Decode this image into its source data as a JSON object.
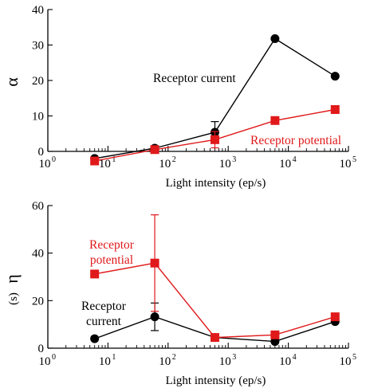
{
  "chart_data": [
    {
      "type": "line",
      "ylabel": "α",
      "xlabel": "Light intensity (ep/s)",
      "xscale": "log",
      "xlim": [
        1,
        100000
      ],
      "ylim": [
        0,
        40
      ],
      "yticks": [
        0,
        10,
        20,
        30,
        40
      ],
      "xtick_base": "10",
      "xtick_exponents": [
        "0",
        "1",
        "2",
        "3",
        "4",
        "5"
      ],
      "grid": false,
      "series": [
        {
          "name": "Receptor current",
          "color": "#000000",
          "marker": "circle",
          "x": [
            6,
            60,
            600,
            6000,
            60000
          ],
          "y": [
            -2.0,
            0.9,
            5.4,
            31.8,
            21.2
          ],
          "err": [
            null,
            null,
            3.0,
            null,
            null
          ]
        },
        {
          "name": "Receptor potential",
          "color": "#e0191a",
          "marker": "square",
          "x": [
            6,
            60,
            600,
            6000,
            60000
          ],
          "y": [
            -2.7,
            0.5,
            3.3,
            8.7,
            11.8
          ],
          "err": [
            null,
            null,
            2.3,
            null,
            null
          ]
        }
      ],
      "annotations": [
        {
          "text": "Receptor current",
          "color": "#000000"
        },
        {
          "text": "Receptor potential",
          "color": "#e0191a"
        }
      ]
    },
    {
      "type": "line",
      "ylabel": "η",
      "ylabel_unit": "(s)",
      "xlabel": "Light intensity (ep/s)",
      "xscale": "log",
      "xlim": [
        1,
        100000
      ],
      "ylim": [
        0,
        60
      ],
      "yticks": [
        0,
        20,
        40,
        60
      ],
      "xtick_base": "10",
      "xtick_exponents": [
        "0",
        "1",
        "2",
        "3",
        "4",
        "5"
      ],
      "grid": false,
      "series": [
        {
          "name": "Receptor current",
          "color": "#000000",
          "marker": "circle",
          "x": [
            6,
            60,
            600,
            6000,
            60000
          ],
          "y": [
            4.0,
            13.2,
            4.5,
            2.8,
            11.2
          ],
          "err": [
            null,
            5.8,
            null,
            null,
            null
          ]
        },
        {
          "name": "Receptor potential",
          "color": "#e0191a",
          "marker": "square",
          "x": [
            6,
            60,
            600,
            6000,
            60000
          ],
          "y": [
            31.2,
            35.8,
            4.5,
            5.6,
            13.2
          ],
          "err": [
            null,
            20.3,
            null,
            null,
            null
          ]
        }
      ],
      "annotations": [
        {
          "text": "Receptor",
          "text2": "potential",
          "color": "#e0191a"
        },
        {
          "text": "Receptor",
          "text2": "current",
          "color": "#000000"
        }
      ]
    }
  ]
}
